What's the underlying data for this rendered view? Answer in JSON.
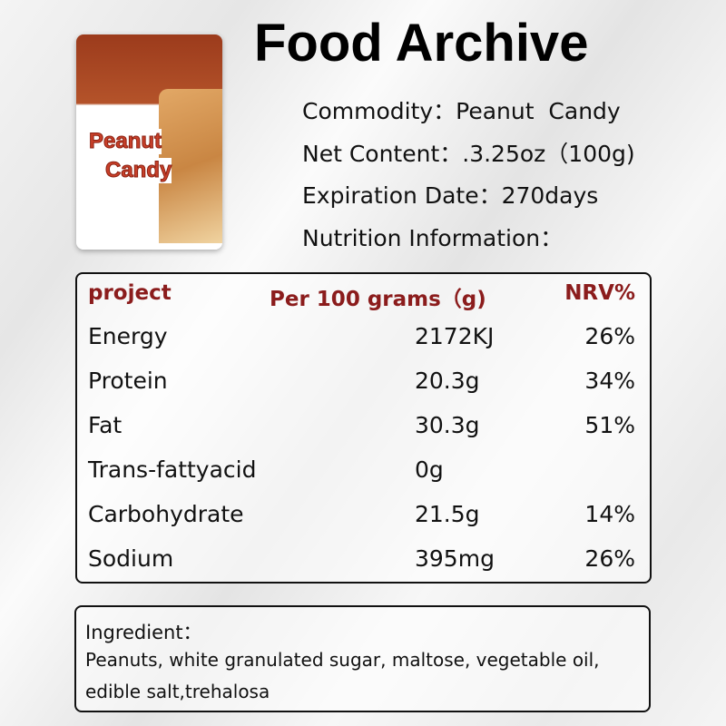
{
  "header": {
    "title": "Food Archive"
  },
  "package": {
    "lines": [
      "Peanut",
      "Candy"
    ]
  },
  "info": [
    "Commodity：Peanut  Candy",
    "Net Content：.3.25oz（100g)",
    "Expiration Date：270days",
    "Nutrition Information："
  ],
  "table": {
    "header": [
      "project",
      "Per 100 grams（g)",
      "NRV%"
    ],
    "rows": [
      [
        "Energy",
        "2172KJ",
        "26%"
      ],
      [
        "Protein",
        "20.3g",
        "34%"
      ],
      [
        "Fat",
        "30.3g",
        "51%"
      ],
      [
        "Trans-fattyacid",
        "0g"
      ],
      [
        "Carbohydrate",
        "21.5g",
        "14%"
      ],
      [
        "Sodium",
        "395mg",
        "26%"
      ]
    ]
  },
  "ingredient": {
    "label": "Ingredient：",
    "lines": [
      "Peanuts, white granulated sugar, maltose, vegetable oil,",
      "edible salt,trehalosa"
    ]
  }
}
